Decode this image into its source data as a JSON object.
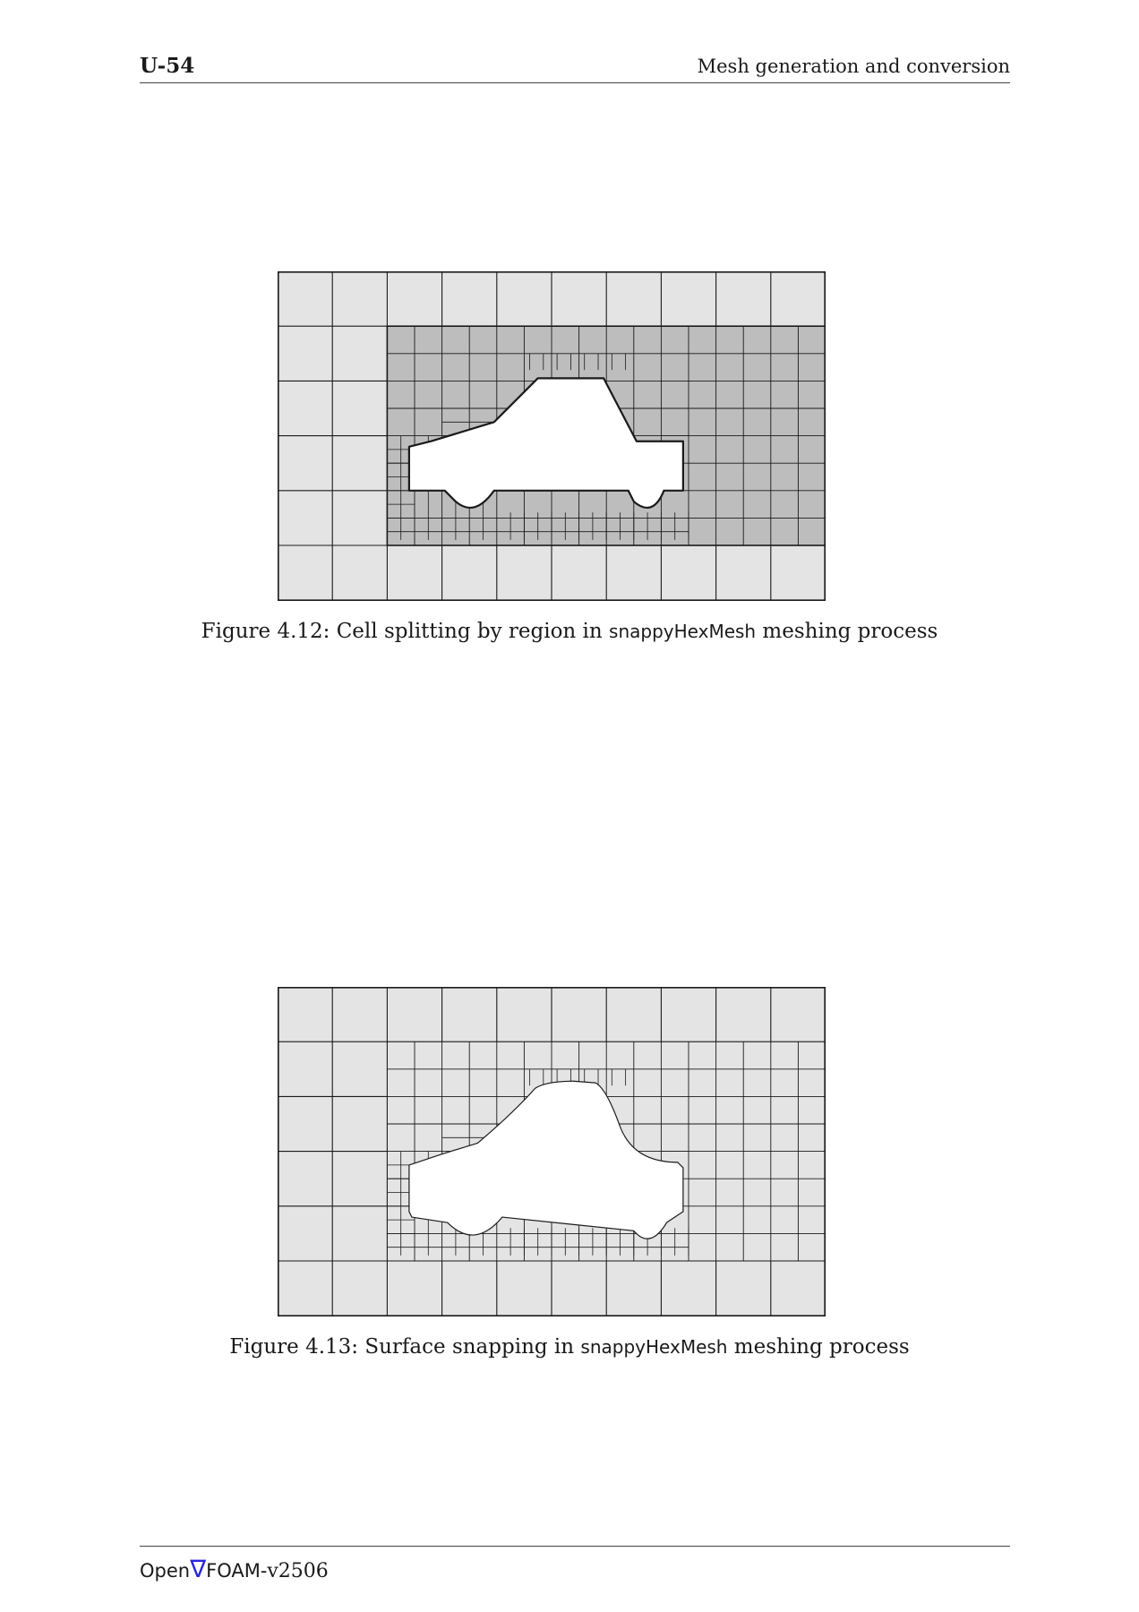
{
  "header": {
    "page_number": "U-54",
    "running_title": "Mesh generation and conversion"
  },
  "figures": [
    {
      "caption_prefix": "Figure 4.12: Cell splitting by region in",
      "caption_tool": "snappyHexMesh",
      "caption_suffix": "meshing process"
    },
    {
      "caption_prefix": "Figure 4.13: Surface snapping in",
      "caption_tool": "snappyHexMesh",
      "caption_suffix": "meshing process"
    }
  ],
  "footer": {
    "brand_open": "Open",
    "brand_symbol": "∇",
    "brand_foam": "FOAM",
    "version": "-v2506"
  },
  "colors": {
    "background_cell": "#e4e4e4",
    "refined_region": "#bdbdbd",
    "grid_line": "#1a1a1a",
    "nabla": "#2626e0"
  }
}
